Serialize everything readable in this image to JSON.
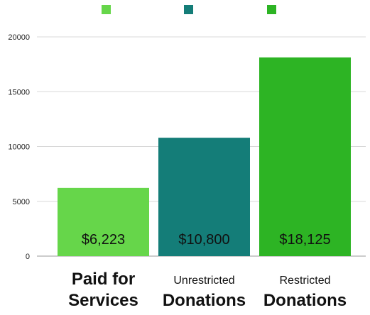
{
  "chart_data": {
    "type": "bar",
    "categories": [
      "Paid for Services",
      "Unrestricted Donations",
      "Restricted Donations"
    ],
    "category_label_lines": [
      [
        "Paid for",
        "Services"
      ],
      [
        "Unrestricted",
        "Donations"
      ],
      [
        "Restricted",
        "Donations"
      ]
    ],
    "values": [
      6223,
      10800,
      18125
    ],
    "value_labels": [
      "$6,223",
      "$10,800",
      "$18,125"
    ],
    "colors": [
      "#66d64a",
      "#147d78",
      "#2db424"
    ],
    "ylim": [
      0,
      20000
    ],
    "yticks": [
      0,
      5000,
      10000,
      15000,
      20000
    ],
    "ytick_labels": [
      "0",
      "5000",
      "10000",
      "15000",
      "20000"
    ],
    "grid": true,
    "legend": {
      "placement": "top",
      "entries": [
        "",
        "",
        ""
      ]
    },
    "title": "",
    "xlabel": "",
    "ylabel": ""
  }
}
